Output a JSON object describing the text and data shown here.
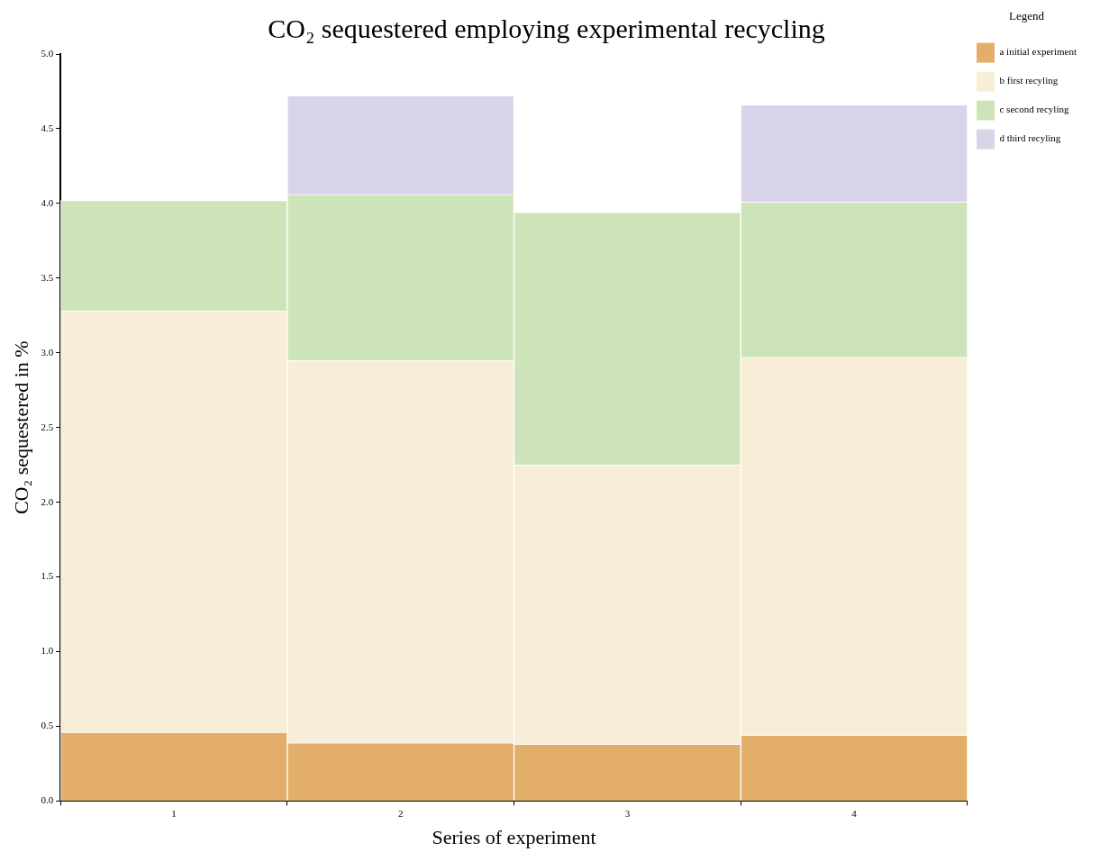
{
  "chart_data": {
    "type": "bar",
    "title": "CO₂ sequestered employing experimental recycling",
    "xlabel": "Series of experiment",
    "ylabel": "CO₂ sequestered in %",
    "legend_title": "Legend",
    "categories": [
      "1",
      "2",
      "3",
      "4"
    ],
    "series": [
      {
        "name": "a initial experiment",
        "color": "#e2ae6a",
        "values": [
          0.46,
          0.39,
          0.38,
          0.44
        ]
      },
      {
        "name": "b first recyling",
        "color": "#f8edd6",
        "values": [
          2.82,
          2.56,
          1.87,
          2.53
        ]
      },
      {
        "name": "c second recyling",
        "color": "#cde4bb",
        "values": [
          0.74,
          1.11,
          1.69,
          1.04
        ]
      },
      {
        "name": "d third recyling",
        "color": "#d9d4e9",
        "values": [
          null,
          0.66,
          null,
          0.65
        ]
      }
    ],
    "stacked": true,
    "ylim": [
      0,
      5
    ],
    "yticks": [
      {
        "value": 0,
        "label": "0.0"
      },
      {
        "value": 0.5,
        "label": "0.5"
      },
      {
        "value": 1,
        "label": "1.0"
      },
      {
        "value": 1.5,
        "label": "1.5"
      },
      {
        "value": 2,
        "label": "2.0"
      },
      {
        "value": 2.5,
        "label": "2.5"
      },
      {
        "value": 3,
        "label": "3.0"
      },
      {
        "value": 3.5,
        "label": "3.5"
      },
      {
        "value": 4,
        "label": "4.0"
      },
      {
        "value": 4.5,
        "label": "4.5"
      },
      {
        "value": 5,
        "label": "5.0"
      }
    ],
    "grid": false,
    "legend": "top right"
  }
}
